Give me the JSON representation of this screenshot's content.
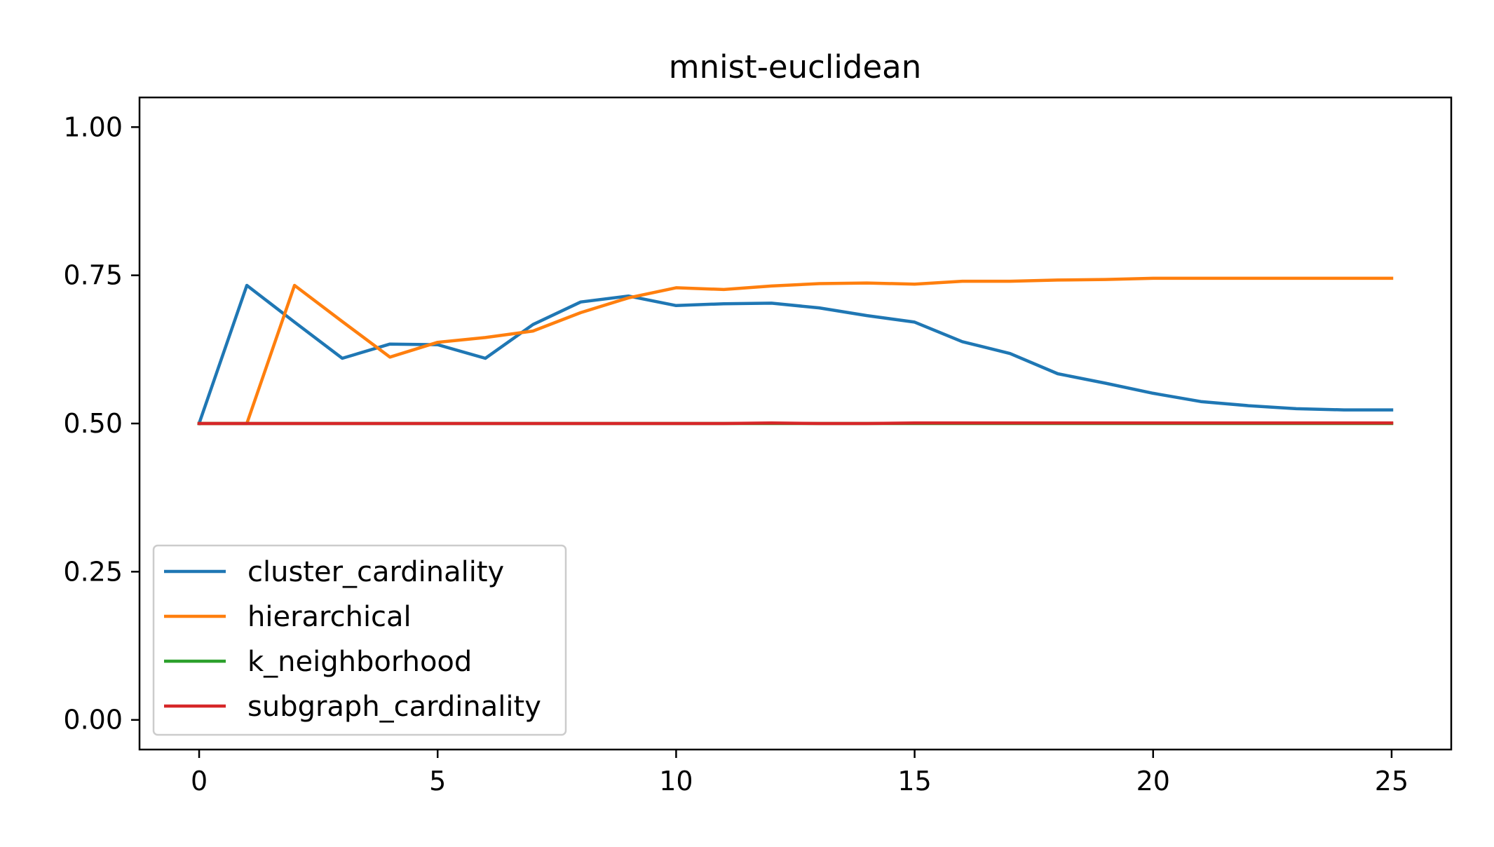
{
  "chart_data": {
    "type": "line",
    "title": "mnist-euclidean",
    "xlabel": "",
    "ylabel": "",
    "xlim": [
      -1.25,
      26.25
    ],
    "ylim": [
      -0.05,
      1.05
    ],
    "xticks": [
      0,
      5,
      10,
      15,
      20,
      25
    ],
    "yticks": [
      0.0,
      0.25,
      0.5,
      0.75,
      1.0
    ],
    "xtick_labels": [
      "0",
      "5",
      "10",
      "15",
      "20",
      "25"
    ],
    "ytick_labels": [
      "0.00",
      "0.25",
      "0.50",
      "0.75",
      "1.00"
    ],
    "grid": false,
    "legend_position": "lower-left",
    "x": [
      0,
      1,
      2,
      3,
      4,
      5,
      6,
      7,
      8,
      9,
      10,
      11,
      12,
      13,
      14,
      15,
      16,
      17,
      18,
      19,
      20,
      21,
      22,
      23,
      24,
      25
    ],
    "series": [
      {
        "name": "cluster_cardinality",
        "color": "#1f77b4",
        "values": [
          0.5,
          0.733,
          0.671,
          0.61,
          0.634,
          0.633,
          0.61,
          0.667,
          0.705,
          0.715,
          0.699,
          0.702,
          0.703,
          0.695,
          0.682,
          0.671,
          0.638,
          0.618,
          0.584,
          0.568,
          0.551,
          0.537,
          0.53,
          0.525,
          0.523,
          0.523
        ]
      },
      {
        "name": "hierarchical",
        "color": "#ff7f0e",
        "values": [
          0.5,
          0.5,
          0.733,
          0.672,
          0.612,
          0.637,
          0.645,
          0.656,
          0.687,
          0.712,
          0.729,
          0.726,
          0.732,
          0.736,
          0.737,
          0.735,
          0.74,
          0.74,
          0.742,
          0.743,
          0.745,
          0.745,
          0.745,
          0.745,
          0.745,
          0.745
        ]
      },
      {
        "name": "k_neighborhood",
        "color": "#2ca02c",
        "values": [
          0.5,
          0.5,
          0.5,
          0.5,
          0.5,
          0.5,
          0.5,
          0.5,
          0.5,
          0.5,
          0.5,
          0.5,
          0.5,
          0.5,
          0.5,
          0.5,
          0.5,
          0.5,
          0.5,
          0.5,
          0.5,
          0.5,
          0.5,
          0.5,
          0.5,
          0.5
        ]
      },
      {
        "name": "subgraph_cardinality",
        "color": "#d62728",
        "values": [
          0.5,
          0.5,
          0.5,
          0.5,
          0.5,
          0.5,
          0.5,
          0.5,
          0.5,
          0.5,
          0.5,
          0.5,
          0.501,
          0.5,
          0.5,
          0.501,
          0.501,
          0.501,
          0.501,
          0.501,
          0.501,
          0.501,
          0.501,
          0.501,
          0.501,
          0.501
        ]
      }
    ]
  }
}
